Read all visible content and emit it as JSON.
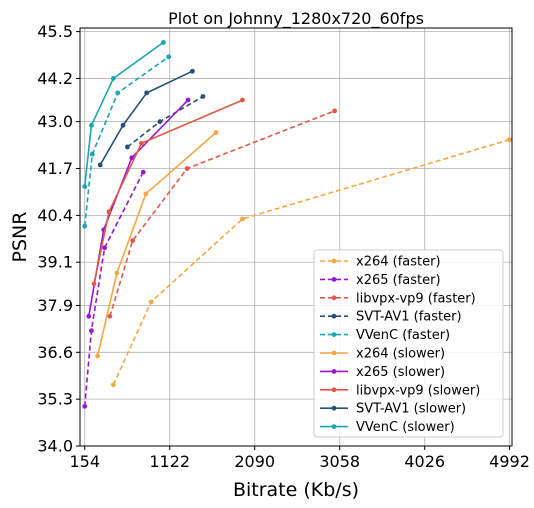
{
  "chart_data": {
    "type": "line",
    "title": "Plot on Johnny_1280x720_60fps",
    "xlabel": "Bitrate (Kb/s)",
    "ylabel": "PSNR",
    "xlim": [
      100,
      5020
    ],
    "ylim": [
      34.0,
      45.6
    ],
    "xticks": [
      154,
      1122,
      2090,
      3058,
      4026,
      4992
    ],
    "yticks": [
      34.0,
      35.3,
      36.6,
      37.9,
      39.1,
      40.4,
      41.7,
      43.0,
      44.2,
      45.5
    ],
    "ytick_labels": [
      "34.0",
      "35.3",
      "36.6",
      "37.9",
      "39.1",
      "40.4",
      "41.7",
      "43.0",
      "44.2",
      "45.5"
    ],
    "grid": true,
    "legend_position": "lower-right",
    "series": [
      {
        "name": "x264 (faster)",
        "color": "#f5a742",
        "dash": "dashed",
        "points": [
          [
            480,
            35.7
          ],
          [
            910,
            38.0
          ],
          [
            1950,
            40.3
          ],
          [
            4990,
            42.5
          ]
        ]
      },
      {
        "name": "x265 (faster)",
        "color": "#9a16d4",
        "dash": "dashed",
        "points": [
          [
            154,
            35.1
          ],
          [
            230,
            37.2
          ],
          [
            380,
            39.5
          ],
          [
            820,
            41.6
          ]
        ]
      },
      {
        "name": "libvpx-vp9 (faster)",
        "color": "#e05a48",
        "dash": "dashed",
        "points": [
          [
            440,
            37.6
          ],
          [
            700,
            39.7
          ],
          [
            1320,
            41.7
          ],
          [
            3000,
            43.3
          ]
        ]
      },
      {
        "name": "SVT-AV1 (faster)",
        "color": "#25507a",
        "dash": "dashed",
        "points": [
          [
            640,
            42.3
          ],
          [
            1010,
            43.0
          ],
          [
            1500,
            43.7
          ]
        ]
      },
      {
        "name": "VVenC (faster)",
        "color": "#1aa5b2",
        "dash": "dashed",
        "points": [
          [
            154,
            40.1
          ],
          [
            240,
            42.1
          ],
          [
            530,
            43.8
          ],
          [
            1110,
            44.8
          ]
        ]
      },
      {
        "name": "x264 (slower)",
        "color": "#f5a742",
        "dash": "solid",
        "points": [
          [
            300,
            36.5
          ],
          [
            520,
            38.8
          ],
          [
            850,
            41.0
          ],
          [
            1650,
            42.7
          ]
        ]
      },
      {
        "name": "x265 (slower)",
        "color": "#9a16d4",
        "dash": "solid",
        "points": [
          [
            200,
            37.6
          ],
          [
            370,
            40.0
          ],
          [
            690,
            42.0
          ],
          [
            1330,
            43.6
          ]
        ]
      },
      {
        "name": "libvpx-vp9 (slower)",
        "color": "#e05a48",
        "dash": "solid",
        "points": [
          [
            260,
            38.5
          ],
          [
            430,
            40.5
          ],
          [
            800,
            42.4
          ],
          [
            1950,
            43.6
          ]
        ]
      },
      {
        "name": "SVT-AV1 (slower)",
        "color": "#25507a",
        "dash": "solid",
        "points": [
          [
            330,
            41.8
          ],
          [
            590,
            42.9
          ],
          [
            860,
            43.8
          ],
          [
            1380,
            44.4
          ]
        ]
      },
      {
        "name": "VVenC (slower)",
        "color": "#1aa5b2",
        "dash": "solid",
        "points": [
          [
            154,
            41.2
          ],
          [
            230,
            42.9
          ],
          [
            480,
            44.2
          ],
          [
            1050,
            45.2
          ]
        ]
      }
    ]
  }
}
